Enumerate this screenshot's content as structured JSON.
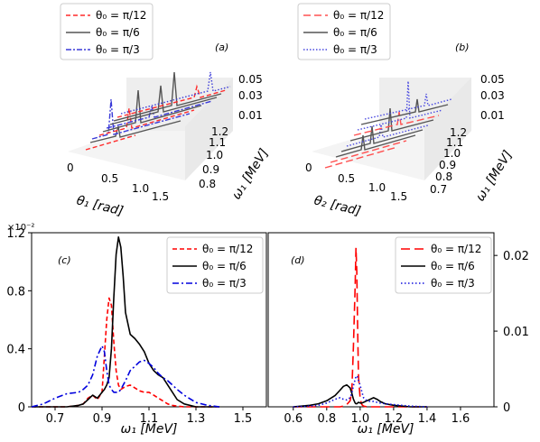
{
  "chart_data": [
    {
      "id": "a",
      "type": "line",
      "panel_label": "(a)",
      "xlabel": "θ₁ [rad]",
      "ylabel": "ω₁ [MeV]",
      "zticks": [
        "0.01",
        "0.03",
        "0.05"
      ],
      "xticks": [
        "0",
        "0.5",
        "1.0",
        "1.5"
      ],
      "yticks": [
        "0.8",
        "0.9",
        "1.0",
        "1.1",
        "1.2"
      ],
      "legend": [
        "θ₀ = π/12",
        "θ₀ = π/6",
        "θ₀ = π/3"
      ],
      "colors": [
        "#ff2a2a",
        "#555555",
        "#3a3ad8"
      ]
    },
    {
      "id": "b",
      "type": "line",
      "panel_label": "(b)",
      "xlabel": "θ₂ [rad]",
      "ylabel": "ω₁ [MeV]",
      "zticks": [
        "0.01",
        "0.03",
        "0.05"
      ],
      "xticks": [
        "0",
        "0.5",
        "1.0",
        "1.5"
      ],
      "yticks": [
        "0.7",
        "0.8",
        "0.9",
        "1.0",
        "1.1",
        "1.2"
      ],
      "legend": [
        "θ₀ = π/12",
        "θ₀ = π/6",
        "θ₀ = π/3"
      ],
      "colors": [
        "#ff5050",
        "#555555",
        "#4848e0"
      ]
    },
    {
      "id": "c",
      "type": "line",
      "panel_label": "(c)",
      "multiplier": "×10⁻²",
      "xlabel": "ω₁ [MeV]",
      "ylabel": "",
      "xlim": [
        0.6,
        1.6
      ],
      "ylim": [
        0,
        1.2
      ],
      "xticks": [
        0.7,
        0.9,
        1.1,
        1.3,
        1.5
      ],
      "xtick_labels": [
        "0.7",
        "0.9",
        "1.1",
        "1.3",
        "1.5"
      ],
      "yticks": [
        0,
        0.4,
        0.8,
        1.2
      ],
      "ytick_labels": [
        "0",
        "0.4",
        "0.8",
        "1.2"
      ],
      "x": [
        0.6,
        0.65,
        0.7,
        0.75,
        0.8,
        0.82,
        0.84,
        0.86,
        0.88,
        0.9,
        0.91,
        0.92,
        0.93,
        0.94,
        0.95,
        0.96,
        0.97,
        0.98,
        0.99,
        1.0,
        1.02,
        1.04,
        1.06,
        1.08,
        1.1,
        1.12,
        1.14,
        1.16,
        1.18,
        1.2,
        1.22,
        1.25,
        1.3,
        1.35,
        1.4
      ],
      "series": [
        {
          "name": "θ₀ = π/12",
          "color": "#ff0000",
          "dash": "5,3",
          "width": 1.6,
          "values": [
            0,
            0,
            0,
            0,
            0.01,
            0.02,
            0.06,
            0.08,
            0.05,
            0.1,
            0.35,
            0.6,
            0.75,
            0.7,
            0.45,
            0.25,
            0.15,
            0.12,
            0.13,
            0.14,
            0.15,
            0.13,
            0.11,
            0.1,
            0.1,
            0.08,
            0.06,
            0.04,
            0.02,
            0.01,
            0.005,
            0,
            0,
            0,
            0
          ]
        },
        {
          "name": "θ₀ = π/6",
          "color": "#000000",
          "dash": "",
          "width": 1.6,
          "values": [
            0,
            0,
            0,
            0,
            0.01,
            0.02,
            0.05,
            0.08,
            0.06,
            0.1,
            0.12,
            0.15,
            0.2,
            0.4,
            0.75,
            1.05,
            1.17,
            1.1,
            0.9,
            0.65,
            0.5,
            0.47,
            0.43,
            0.38,
            0.3,
            0.25,
            0.22,
            0.2,
            0.15,
            0.1,
            0.05,
            0.02,
            0,
            0,
            0
          ]
        },
        {
          "name": "θ₀ = π/3",
          "color": "#0000dd",
          "dash": "7,3,2,3",
          "width": 1.6,
          "values": [
            0,
            0.02,
            0.06,
            0.09,
            0.1,
            0.12,
            0.15,
            0.22,
            0.35,
            0.42,
            0.38,
            0.25,
            0.15,
            0.12,
            0.1,
            0.1,
            0.1,
            0.12,
            0.15,
            0.18,
            0.25,
            0.28,
            0.31,
            0.32,
            0.3,
            0.27,
            0.23,
            0.2,
            0.18,
            0.15,
            0.12,
            0.08,
            0.03,
            0.01,
            0
          ]
        }
      ],
      "legend_loc": "upper right",
      "grid": false
    },
    {
      "id": "d",
      "type": "line",
      "panel_label": "(d)",
      "xlabel": "ω₁ [MeV]",
      "ylabel": "",
      "xlim": [
        0.45,
        1.8
      ],
      "ylim": [
        0,
        0.023
      ],
      "xticks": [
        0.6,
        0.8,
        1.0,
        1.2,
        1.4,
        1.6
      ],
      "xtick_labels": [
        "0.6",
        "0.8",
        "1.0",
        "1.2",
        "1.4",
        "1.6"
      ],
      "yticks": [
        0,
        0.01,
        0.02
      ],
      "ytick_labels": [
        "0",
        "0.01",
        "0.02"
      ],
      "x": [
        0.6,
        0.7,
        0.75,
        0.8,
        0.85,
        0.88,
        0.9,
        0.92,
        0.94,
        0.95,
        0.96,
        0.97,
        0.975,
        0.98,
        0.985,
        0.99,
        1.0,
        1.01,
        1.02,
        1.04,
        1.06,
        1.08,
        1.1,
        1.12,
        1.15,
        1.2,
        1.3,
        1.4
      ],
      "series": [
        {
          "name": "θ₀ = π/12",
          "color": "#ff0000",
          "dash": "10,5",
          "width": 1.6,
          "values": [
            0,
            0,
            0,
            0,
            0,
            0,
            0.0001,
            0.0003,
            0.0008,
            0.002,
            0.008,
            0.016,
            0.021,
            0.018,
            0.01,
            0.004,
            0.001,
            0.0003,
            0.0001,
            0,
            0,
            0,
            0,
            0,
            0,
            0,
            0,
            0
          ]
        },
        {
          "name": "θ₀ = π/6",
          "color": "#000000",
          "dash": "",
          "width": 1.6,
          "values": [
            0,
            0.0002,
            0.0004,
            0.0008,
            0.0015,
            0.0022,
            0.0027,
            0.0029,
            0.0025,
            0.0018,
            0.001,
            0.0005,
            0.0004,
            0.0004,
            0.0005,
            0.0006,
            0.0005,
            0.0005,
            0.0006,
            0.0008,
            0.001,
            0.0012,
            0.001,
            0.0007,
            0.0004,
            0.0002,
            0,
            0
          ]
        },
        {
          "name": "θ₀ = π/3",
          "color": "#1010dd",
          "dash": "1.5,2.5",
          "width": 1.6,
          "values": [
            0,
            0.0001,
            0.0002,
            0.0005,
            0.001,
            0.0012,
            0.001,
            0.0009,
            0.0012,
            0.0018,
            0.0028,
            0.0036,
            0.004,
            0.0041,
            0.0039,
            0.0035,
            0.0028,
            0.002,
            0.0012,
            0.0008,
            0.0007,
            0.0007,
            0.0006,
            0.0005,
            0.0004,
            0.0003,
            0.0001,
            0
          ]
        }
      ],
      "legend_loc": "upper right",
      "grid": false
    }
  ]
}
